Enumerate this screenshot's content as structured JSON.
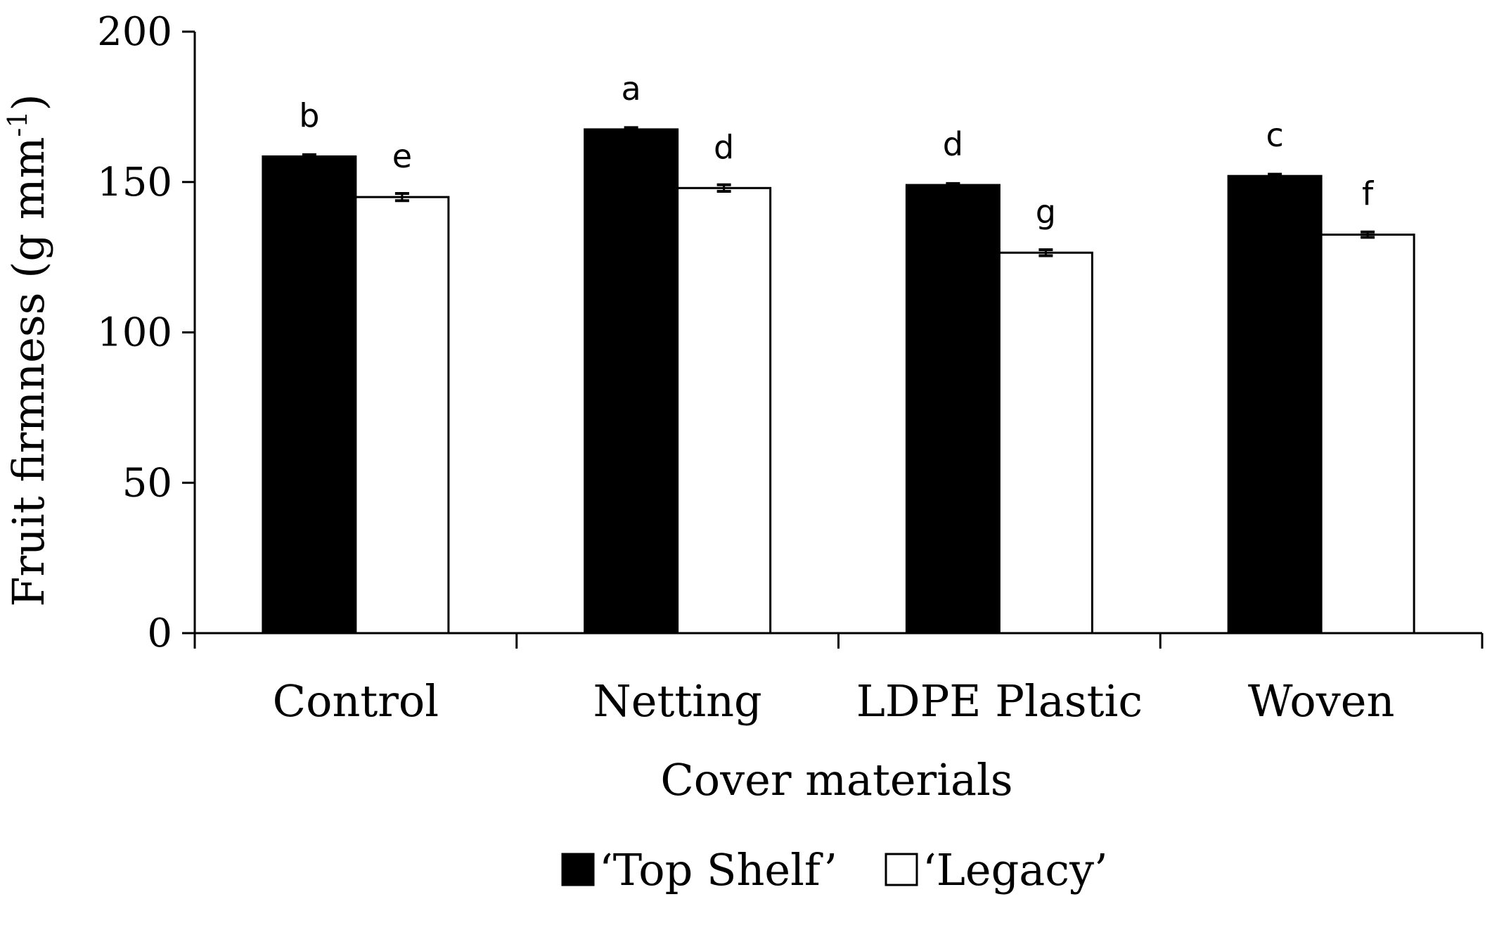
{
  "chart_data": {
    "type": "bar",
    "title": "",
    "xlabel": "Cover materials",
    "ylabel": "Fruit firmness (g mm",
    "ylabel_superscript": "-1",
    "ylabel_close": ")",
    "ylim": [
      0,
      200
    ],
    "yticks": [
      0,
      50,
      100,
      150,
      200
    ],
    "categories": [
      "Control",
      "Netting",
      "LDPE Plastic",
      "Woven"
    ],
    "series": [
      {
        "name": "‘Top Shelf’",
        "color": "#000000",
        "values": [
          158.5,
          167.5,
          149,
          152
        ],
        "errors": [
          0.6,
          0.6,
          0.5,
          0.6
        ],
        "labels": [
          "b",
          "a",
          "d",
          "c"
        ]
      },
      {
        "name": "‘Legacy’",
        "color": "#ffffff",
        "values": [
          145,
          148,
          126.5,
          132.5
        ],
        "errors": [
          1.2,
          1.1,
          1.0,
          0.9
        ],
        "labels": [
          "e",
          "d",
          "g",
          "f"
        ]
      }
    ],
    "legend_position": "bottom-center",
    "grid": false
  }
}
